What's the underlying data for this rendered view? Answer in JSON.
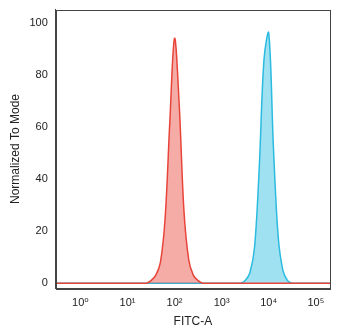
{
  "chart_data": {
    "type": "line",
    "x_label": "FITC-A",
    "y_label": "Normalized To Mode",
    "log": "x",
    "grid": false,
    "x": [
      0.3,
      1,
      1.26,
      1.58,
      2,
      2.51,
      3.16,
      3.98,
      5.01,
      6.31,
      7.94,
      10,
      12.6,
      15.8,
      20,
      25.1,
      31.6,
      39.8,
      50.1,
      63.1,
      79.4,
      100,
      126,
      158,
      200,
      251,
      316,
      398,
      501,
      631,
      794,
      1000,
      1259,
      1585,
      1995,
      2512,
      3162,
      3981,
      5012,
      6310,
      7943,
      10000,
      12589,
      15849,
      19953,
      25119,
      31623,
      39811,
      50119,
      63096,
      79433,
      100000,
      200000
    ],
    "series": [
      {
        "color": "#e8443a",
        "values": [
          0,
          0,
          0,
          0,
          0,
          0,
          0,
          0,
          0,
          0,
          0,
          0,
          0,
          0,
          0,
          0,
          1,
          3,
          8,
          25,
          62,
          94,
          68,
          28,
          9,
          3,
          1,
          0,
          0,
          0,
          0,
          0,
          0,
          0,
          0,
          0,
          0,
          0,
          0,
          0,
          0,
          0,
          0,
          0,
          0,
          0,
          0,
          0,
          0,
          0,
          0,
          0,
          0
        ]
      },
      {
        "color": "#2bbbe0",
        "values": [
          0,
          0,
          0,
          0,
          0,
          0,
          0,
          0,
          0,
          0,
          0,
          0,
          0,
          0,
          0,
          0,
          0,
          0,
          0,
          0,
          0,
          0,
          0,
          0,
          0,
          0,
          0,
          0,
          0,
          0,
          0,
          0,
          0,
          0,
          0,
          0,
          1,
          4,
          14,
          45,
          86,
          96,
          52,
          18,
          5,
          1,
          0,
          0,
          0,
          0,
          0,
          0,
          0
        ]
      }
    ],
    "xlim": [
      0.3,
      200000
    ],
    "xticks": [
      {
        "value": 1,
        "label": "10⁰"
      },
      {
        "value": 10,
        "label": "10¹"
      },
      {
        "value": 100,
        "label": "10²"
      },
      {
        "value": 1000,
        "label": "10³"
      },
      {
        "value": 10000,
        "label": "10⁴"
      },
      {
        "value": 100000,
        "label": "10⁵"
      }
    ],
    "ylim": [
      -2,
      105
    ],
    "yticks": [
      0,
      20,
      40,
      60,
      80,
      100
    ]
  }
}
